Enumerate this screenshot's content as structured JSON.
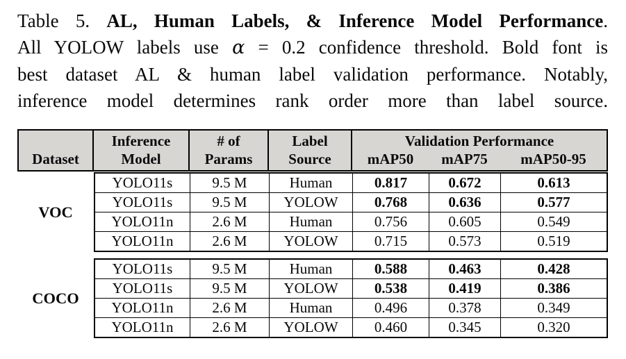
{
  "colors": {
    "page_background": "#ffffff",
    "header_background": "#d8d6d3",
    "border": "#000000",
    "text": "#0a0a0a"
  },
  "caption": {
    "lines": [
      {
        "prefix": "Table 5. ",
        "bold": "AL, Human Labels, & Inference Model Performance",
        "suffix": "."
      },
      {
        "prefix": "All YOLOW labels use ",
        "alpha": "α",
        "suffix": " = 0.2 confidence threshold. Bold font is"
      },
      {
        "prefix": "best dataset AL & human label validation performance. Notably,"
      },
      {
        "prefix": "inference model determines rank order more than label source."
      }
    ]
  },
  "table": {
    "header": {
      "dataset": "Dataset",
      "model_line1": "Inference",
      "model_line2": "Model",
      "params_line1": "# of",
      "params_line2": "Params",
      "source_line1": "Label",
      "source_line2": "Source",
      "validation_performance": "Validation Performance",
      "map50": "mAP50",
      "map75": "mAP75",
      "map50_95": "mAP50-95"
    },
    "groups": [
      {
        "dataset": "VOC",
        "rows": [
          {
            "model": "YOLO11s",
            "params": "9.5 M",
            "source": "Human",
            "map50": "0.817",
            "map75": "0.672",
            "map50_95": "0.613",
            "bold": true
          },
          {
            "model": "YOLO11s",
            "params": "9.5 M",
            "source": "YOLOW",
            "map50": "0.768",
            "map75": "0.636",
            "map50_95": "0.577",
            "bold": true
          },
          {
            "model": "YOLO11n",
            "params": "2.6 M",
            "source": "Human",
            "map50": "0.756",
            "map75": "0.605",
            "map50_95": "0.549",
            "bold": false
          },
          {
            "model": "YOLO11n",
            "params": "2.6 M",
            "source": "YOLOW",
            "map50": "0.715",
            "map75": "0.573",
            "map50_95": "0.519",
            "bold": false
          }
        ]
      },
      {
        "dataset": "COCO",
        "rows": [
          {
            "model": "YOLO11s",
            "params": "9.5 M",
            "source": "Human",
            "map50": "0.588",
            "map75": "0.463",
            "map50_95": "0.428",
            "bold": true
          },
          {
            "model": "YOLO11s",
            "params": "9.5 M",
            "source": "YOLOW",
            "map50": "0.538",
            "map75": "0.419",
            "map50_95": "0.386",
            "bold": true
          },
          {
            "model": "YOLO11n",
            "params": "2.6 M",
            "source": "Human",
            "map50": "0.496",
            "map75": "0.378",
            "map50_95": "0.349",
            "bold": false
          },
          {
            "model": "YOLO11n",
            "params": "2.6 M",
            "source": "YOLOW",
            "map50": "0.460",
            "map75": "0.345",
            "map50_95": "0.320",
            "bold": false
          }
        ]
      }
    ]
  }
}
